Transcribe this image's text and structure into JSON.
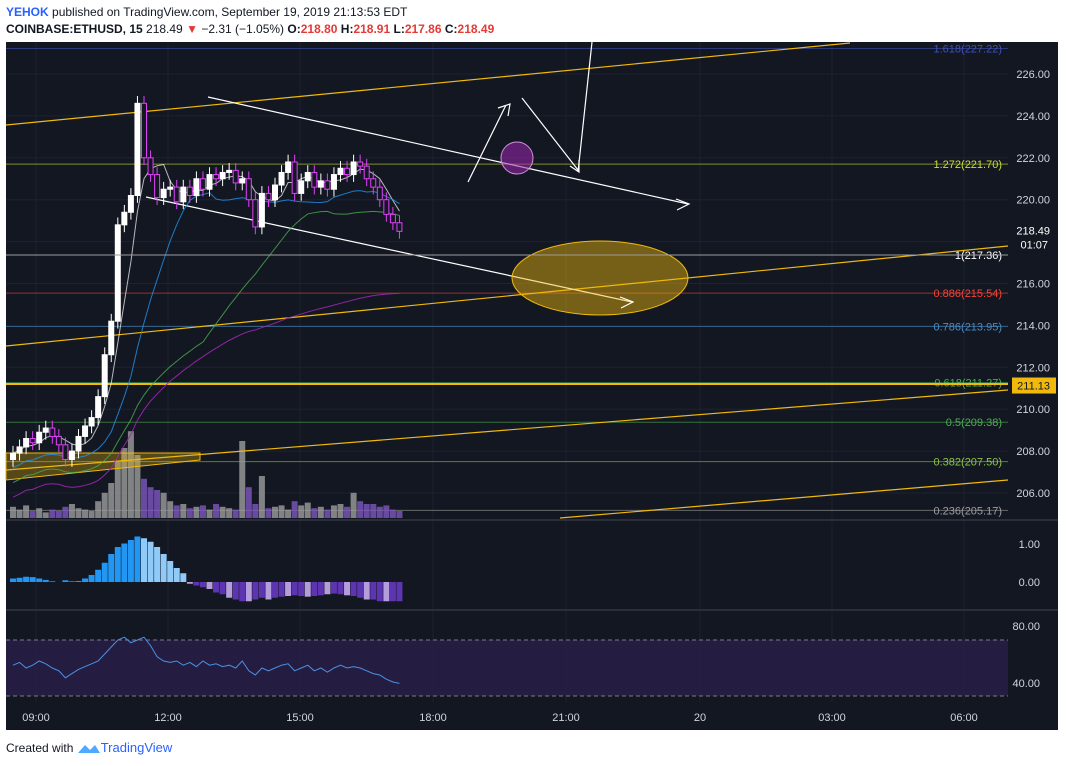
{
  "header": {
    "author": "YEHOK",
    "published": "published on TradingView.com, September 19, 2019 21:13:53 EDT",
    "symbol": "COINBASE:ETHUSD, 15",
    "price": "218.49",
    "change": "−2.31 (−1.05%)",
    "o_label": "O:",
    "o": "218.80",
    "h_label": "H:",
    "h": "218.91",
    "l_label": "L:",
    "l": "217.86",
    "c_label": "C:",
    "c": "218.49"
  },
  "footer": {
    "created": "Created with",
    "brand": "TradingView"
  },
  "colors": {
    "bg": "#131722",
    "up": "#ffffff",
    "down": "#e040fb",
    "trend": "#f0b90b",
    "macd_pos": "#2196f3",
    "macd_neg": "#5e35b1",
    "rsi": "#4a90e2"
  },
  "chart_data": {
    "type": "candlestick",
    "y_axis": {
      "ticks": [
        "226.00",
        "224.00",
        "222.00",
        "220.00",
        "218.00",
        "216.00",
        "214.00",
        "212.00",
        "210.00",
        "208.00",
        "206.00"
      ],
      "range": [
        204.6,
        227.6
      ]
    },
    "x_axis": {
      "ticks": [
        "09:00",
        "12:00",
        "15:00",
        "18:00",
        "21:00",
        "20",
        "03:00",
        "06:00"
      ]
    },
    "last_price": "218.49",
    "countdown": "01:07",
    "marked_level": "211.13",
    "fib_levels": [
      {
        "label": "1.618(227.22)",
        "value": 227.22,
        "color": "#3f51b5"
      },
      {
        "label": "1.272(221.70)",
        "value": 221.7,
        "color": "#cddc39"
      },
      {
        "label": "1(217.36)",
        "value": 217.36,
        "color": "#ffffff"
      },
      {
        "label": "0.886(215.54)",
        "value": 215.54,
        "color": "#f44336"
      },
      {
        "label": "0.786(213.95)",
        "value": 213.95,
        "color": "#4a8bc2"
      },
      {
        "label": "0.618(211.27)",
        "value": 211.27,
        "color": "#4caf50"
      },
      {
        "label": "0.5(209.38)",
        "value": 209.38,
        "color": "#4caf50"
      },
      {
        "label": "0.382(207.50)",
        "value": 207.5,
        "color": "#8bc34a"
      },
      {
        "label": "0.236(205.17)",
        "value": 205.17,
        "color": "#9e9e9e"
      }
    ],
    "macd_ticks": [
      "1.00",
      "0.00"
    ],
    "rsi_ticks": [
      "80.00",
      "40.00"
    ]
  }
}
